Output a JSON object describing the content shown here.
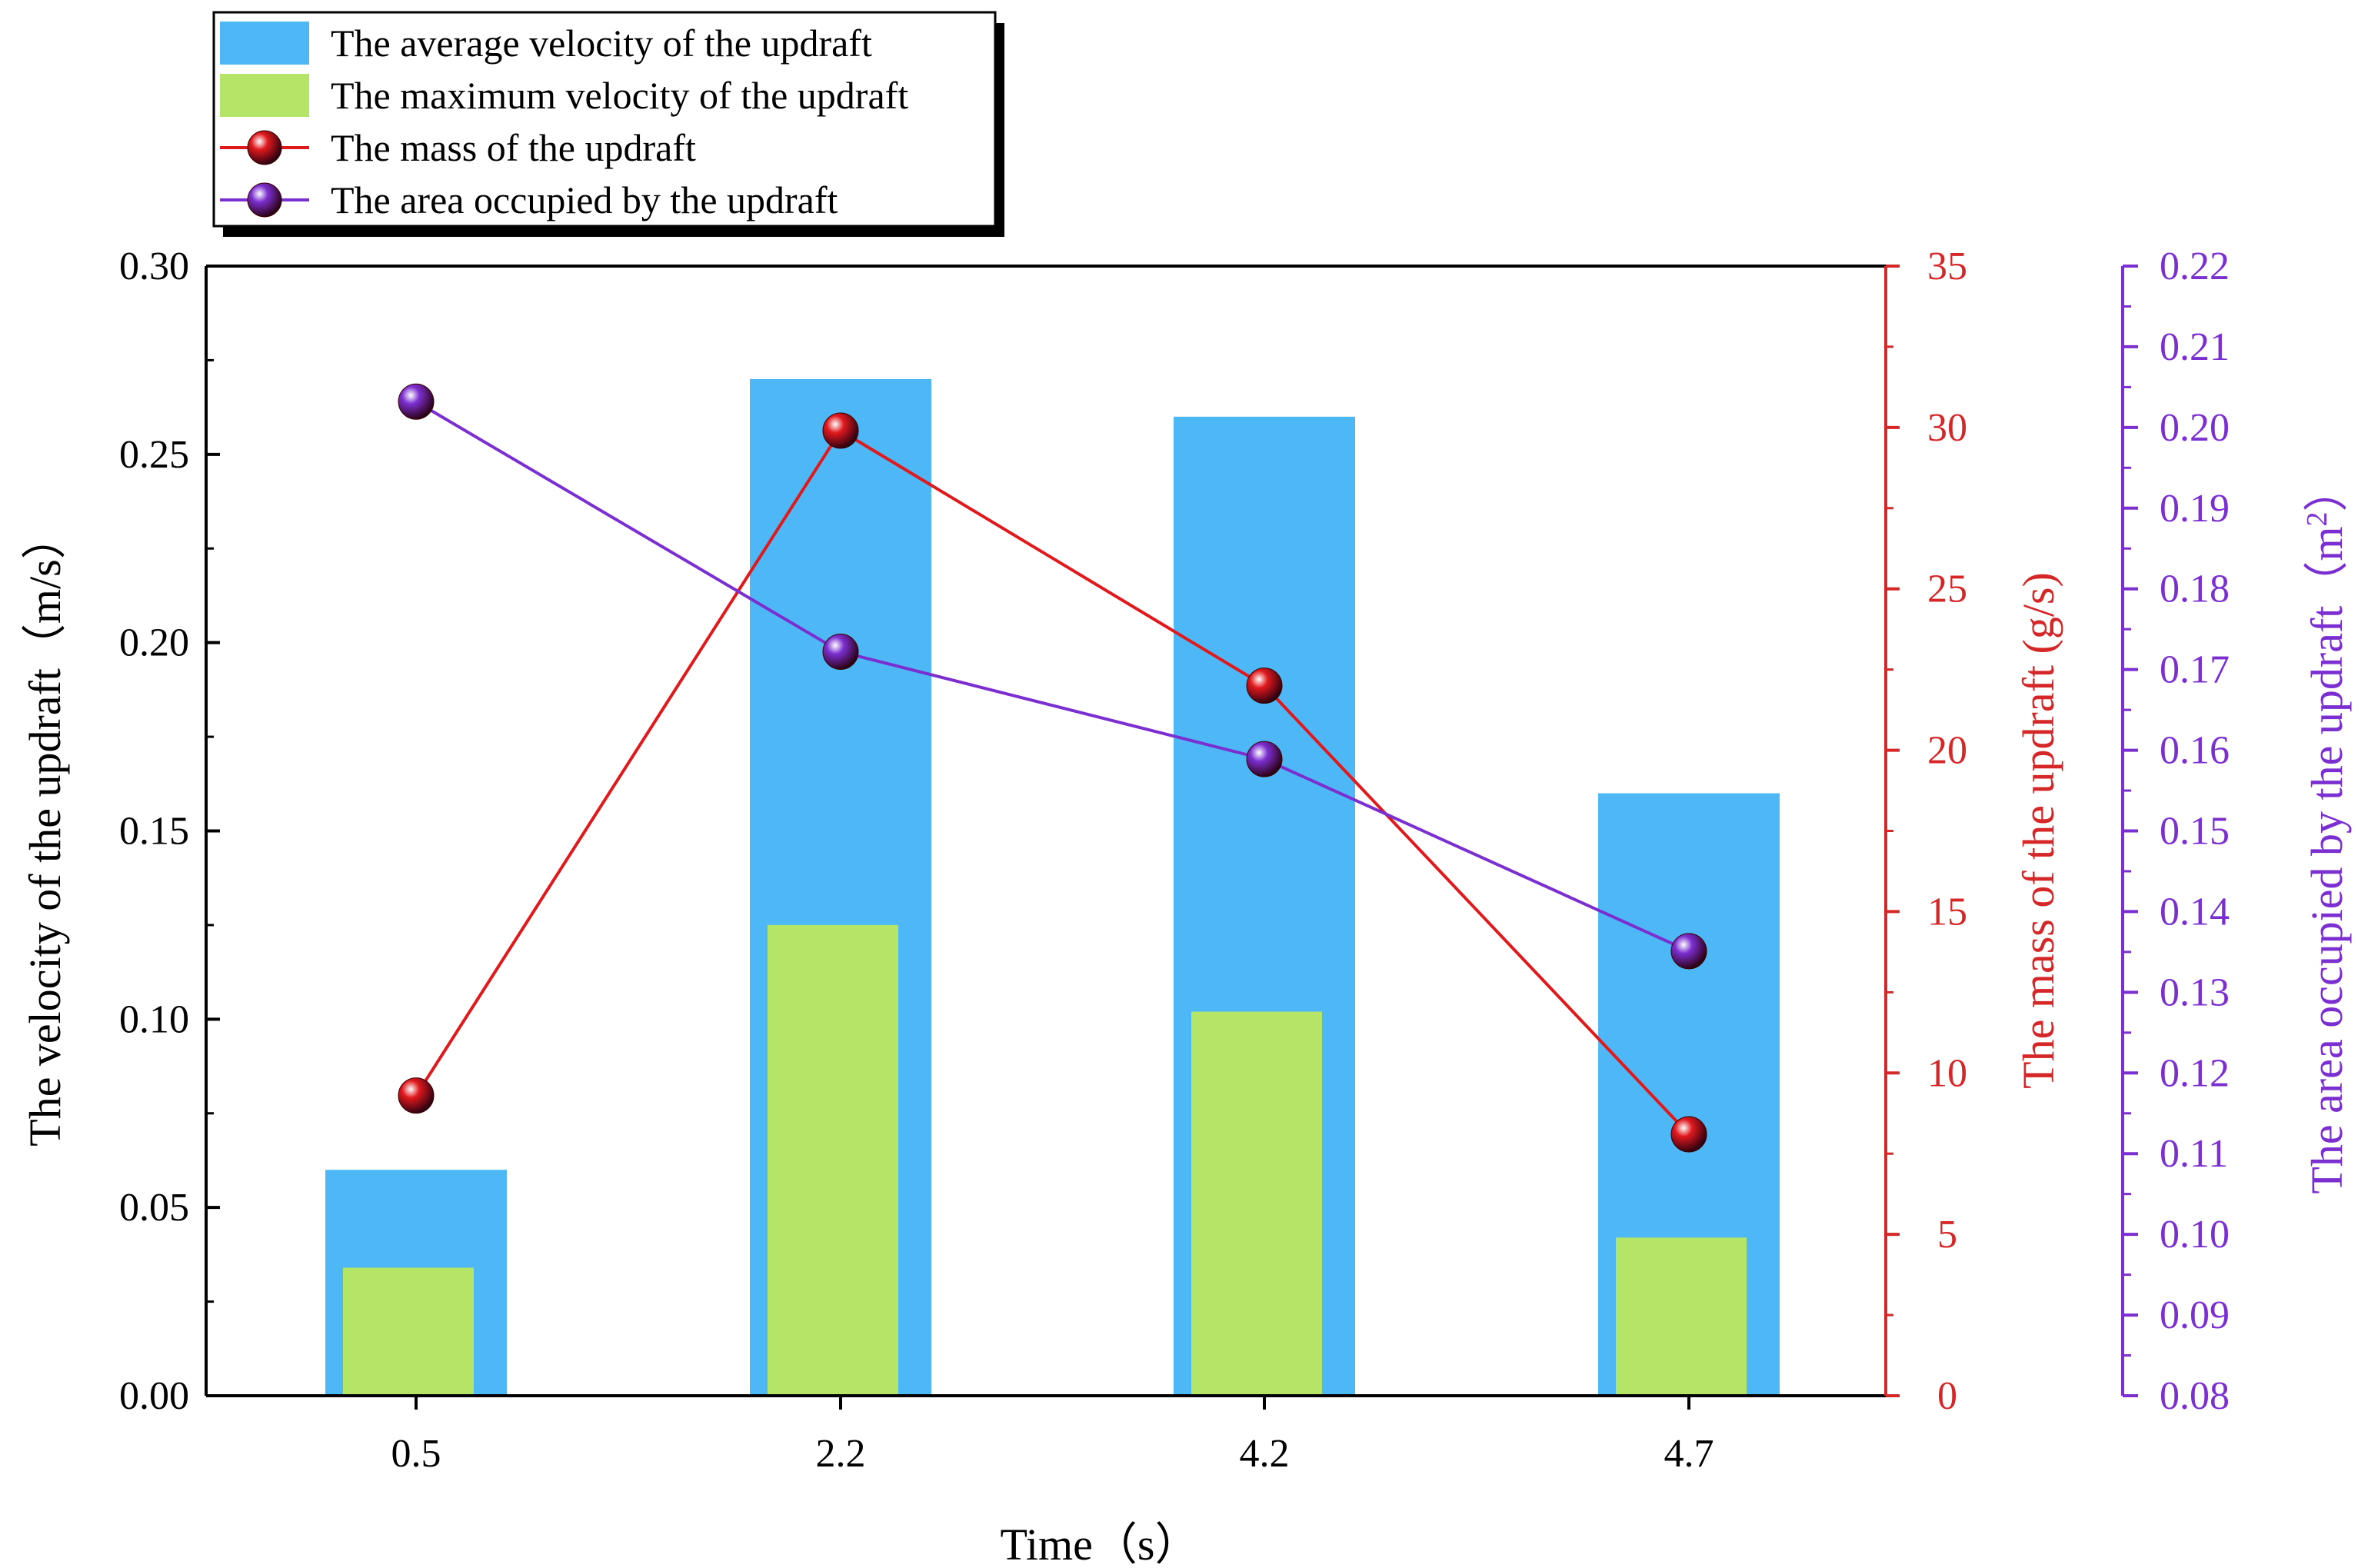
{
  "chart_data": {
    "type": "bar+line",
    "title": "",
    "xlabel": "Time（s）",
    "categories": [
      "0.5",
      "2.2",
      "4.2",
      "4.7"
    ],
    "axes": {
      "left": {
        "label": "The velocity of the updraft（m/s）",
        "range": [
          0,
          0.3
        ],
        "ticks": [
          "0.00",
          "0.05",
          "0.10",
          "0.15",
          "0.20",
          "0.25",
          "0.30"
        ],
        "color": "#000000"
      },
      "right1": {
        "label": "The mass of the updraft (g/s)",
        "range": [
          0,
          35
        ],
        "ticks": [
          "0",
          "5",
          "10",
          "15",
          "20",
          "25",
          "30",
          "35"
        ],
        "color": "#d62728"
      },
      "right2": {
        "label_main": "The area occupied by the updraft（m",
        "label_sup": "2",
        "label_end": "）",
        "range": [
          0.08,
          0.22
        ],
        "ticks": [
          "0.08",
          "0.09",
          "0.10",
          "0.11",
          "0.12",
          "0.13",
          "0.14",
          "0.15",
          "0.16",
          "0.17",
          "0.18",
          "0.19",
          "0.20",
          "0.21",
          "0.22"
        ],
        "color": "#7b2fd0"
      }
    },
    "series": [
      {
        "name": "The average velocity of the updraft",
        "kind": "bar",
        "axis": "left",
        "color": "#4db8f5",
        "values": [
          0.06,
          0.27,
          0.26,
          0.16
        ]
      },
      {
        "name": "The maximum velocity of the updraft",
        "kind": "bar",
        "axis": "left",
        "color": "#b5e566",
        "values": [
          0.034,
          0.125,
          0.102,
          0.042
        ]
      },
      {
        "name": "The mass of the updraft",
        "kind": "line",
        "axis": "right1",
        "color": "#e0191d",
        "values": [
          9.3,
          29.9,
          22.0,
          8.1
        ]
      },
      {
        "name": "The area occupied by the updraft",
        "kind": "line",
        "axis": "right2",
        "color": "#7b2fd0",
        "values": [
          0.2032,
          0.1722,
          0.1589,
          0.1351
        ]
      }
    ],
    "legend": {
      "position": "top-left"
    }
  }
}
